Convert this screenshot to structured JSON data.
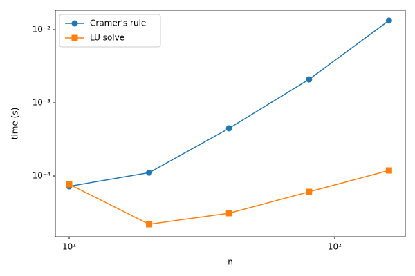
{
  "chart_data": {
    "type": "line",
    "x_label": "n",
    "y_label": "time (s)",
    "x": [
      10,
      20,
      40,
      80,
      160
    ],
    "series": [
      {
        "name": "Cramer's rule",
        "color": "#1f77b4",
        "marker": "circle",
        "values": [
          7.22e-05,
          0.000111,
          0.000448,
          0.00209,
          0.0133
        ]
      },
      {
        "name": "LU solve",
        "color": "#ff7f0e",
        "marker": "square",
        "values": [
          7.7e-05,
          2.19e-05,
          3.1e-05,
          6.07e-05,
          0.000119
        ]
      }
    ],
    "xscale": "log",
    "yscale": "log",
    "xlim": [
      8.87,
      184.4
    ],
    "ylim": [
      1.48e-05,
      0.01837
    ],
    "xticks": [
      {
        "value": 10,
        "label": "10¹"
      },
      {
        "value": 100,
        "label": "10²"
      }
    ],
    "yticks": [
      {
        "value": 0.0001,
        "label": "10⁻⁴"
      },
      {
        "value": 0.001,
        "label": "10⁻³"
      },
      {
        "value": 0.01,
        "label": "10⁻²"
      }
    ],
    "legend": "upper left",
    "grid": false
  }
}
